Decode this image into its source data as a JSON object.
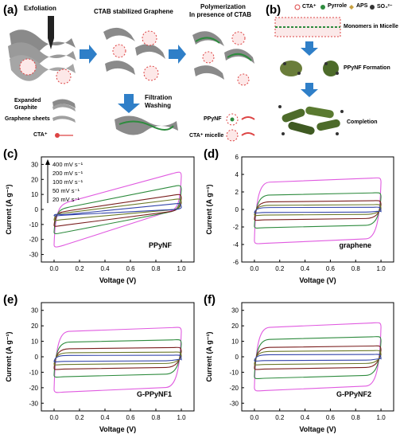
{
  "panel_a": {
    "label": "(a)",
    "steps": [
      "Exfoliation",
      "CTAB stabilized Graphene",
      "Polymerization",
      "In presence of CTAB"
    ],
    "filtration": [
      "Filtration",
      "Washing"
    ],
    "legend_left": [
      "Expanded",
      "Graphite",
      "Graphene sheets",
      "CTA⁺"
    ],
    "legend_right": [
      "PPyNF",
      "CTA⁺ micelle"
    ]
  },
  "panel_b": {
    "label": "(b)",
    "legend": [
      "CTA⁺",
      "Pyrrole",
      "APS",
      "SO₄²⁻"
    ],
    "stages": [
      "Monomers in Micelle",
      "PPyNF Formation",
      "Completion"
    ]
  },
  "colors": {
    "magenta": "#e05ae0",
    "green": "#2e8b3e",
    "darkred": "#7a1e1e",
    "olive": "#6d7a2a",
    "blue": "#3344aa",
    "black": "#222222",
    "arrow_blue": "#2f7fc8",
    "red": "#d44"
  },
  "chart_data": [
    {
      "type": "line",
      "panel": "(c)",
      "annotation": "PPyNF",
      "xlabel": "Voltage (V)",
      "ylabel": "Current (A g⁻¹)",
      "xlim": [
        -0.1,
        1.1
      ],
      "ylim": [
        -35,
        35
      ],
      "xticks": [
        "0.0",
        "0.2",
        "0.4",
        "0.6",
        "0.8",
        "1.0"
      ],
      "yticks": [
        "-30",
        "-20",
        "-10",
        "0",
        "10",
        "20",
        "30"
      ],
      "legend": [
        "400 mV s⁻¹",
        "200 mV s⁻¹",
        "100 mV s⁻¹",
        "50 mV s⁻¹",
        "20 mV s⁻¹"
      ],
      "series": [
        {
          "name": "400 mV s⁻¹",
          "top0": 3,
          "top1": 25,
          "bot0": -25,
          "bot1": 0,
          "color": "#e05ae0"
        },
        {
          "name": "200 mV s⁻¹",
          "top0": 0,
          "top1": 16,
          "bot0": -16,
          "bot1": -1,
          "color": "#2e8b3e"
        },
        {
          "name": "100 mV s⁻¹",
          "top0": -2,
          "top1": 10,
          "bot0": -11,
          "bot1": -1,
          "color": "#7a1e1e"
        },
        {
          "name": "50 mV s⁻¹",
          "top0": -3,
          "top1": 7,
          "bot0": -7,
          "bot1": 0,
          "color": "#6d7a2a"
        },
        {
          "name": "20 mV s⁻¹",
          "top0": -4,
          "top1": 4,
          "bot0": -4,
          "bot1": 0,
          "color": "#3344aa"
        }
      ]
    },
    {
      "type": "line",
      "panel": "(d)",
      "annotation": "graphene",
      "xlabel": "Voltage (V)",
      "ylabel": "Current (A g⁻¹)",
      "xlim": [
        -0.1,
        1.1
      ],
      "ylim": [
        -6,
        6
      ],
      "xticks": [
        "0.0",
        "0.2",
        "0.4",
        "0.6",
        "0.8",
        "1.0"
      ],
      "yticks": [
        "-6",
        "-4",
        "-2",
        "0",
        "2",
        "4",
        "6"
      ],
      "series": [
        {
          "top": 3.6,
          "bot": -3.9,
          "color": "#e05ae0"
        },
        {
          "top": 1.9,
          "bot": -2.1,
          "color": "#2e8b3e"
        },
        {
          "top": 1.0,
          "bot": -1.2,
          "color": "#7a1e1e"
        },
        {
          "top": 0.55,
          "bot": -0.65,
          "color": "#6d7a2a"
        },
        {
          "top": 0.25,
          "bot": -0.35,
          "color": "#3344aa"
        }
      ]
    },
    {
      "type": "line",
      "panel": "(e)",
      "annotation": "G-PPyNF1",
      "xlabel": "Voltage (V)",
      "ylabel": "Current (A g⁻¹)",
      "xlim": [
        -0.1,
        1.1
      ],
      "ylim": [
        -35,
        35
      ],
      "xticks": [
        "0.0",
        "0.2",
        "0.4",
        "0.6",
        "0.8",
        "1.0"
      ],
      "yticks": [
        "-30",
        "-20",
        "-10",
        "0",
        "10",
        "20",
        "30"
      ],
      "series": [
        {
          "top": 19,
          "bot": -23,
          "color": "#e05ae0"
        },
        {
          "top": 11,
          "bot": -13,
          "color": "#2e8b3e"
        },
        {
          "top": 6,
          "bot": -8,
          "color": "#7a1e1e"
        },
        {
          "top": 3,
          "bot": -5,
          "color": "#6d7a2a"
        },
        {
          "top": 1,
          "bot": -3,
          "color": "#3344aa"
        }
      ]
    },
    {
      "type": "line",
      "panel": "(f)",
      "annotation": "G-PPyNF2",
      "xlabel": "Voltage (V)",
      "ylabel": "Current (A g⁻¹)",
      "xlim": [
        -0.1,
        1.1
      ],
      "ylim": [
        -35,
        35
      ],
      "xticks": [
        "0.0",
        "0.2",
        "0.4",
        "0.6",
        "0.8",
        "1.0"
      ],
      "yticks": [
        "-30",
        "-20",
        "-10",
        "0",
        "10",
        "20",
        "30"
      ],
      "series": [
        {
          "top": 22,
          "bot": -22,
          "color": "#e05ae0"
        },
        {
          "top": 13,
          "bot": -14,
          "color": "#2e8b3e"
        },
        {
          "top": 7,
          "bot": -8,
          "color": "#7a1e1e"
        },
        {
          "top": 4,
          "bot": -5,
          "color": "#6d7a2a"
        },
        {
          "top": 1.5,
          "bot": -2.5,
          "color": "#3344aa"
        }
      ]
    }
  ]
}
